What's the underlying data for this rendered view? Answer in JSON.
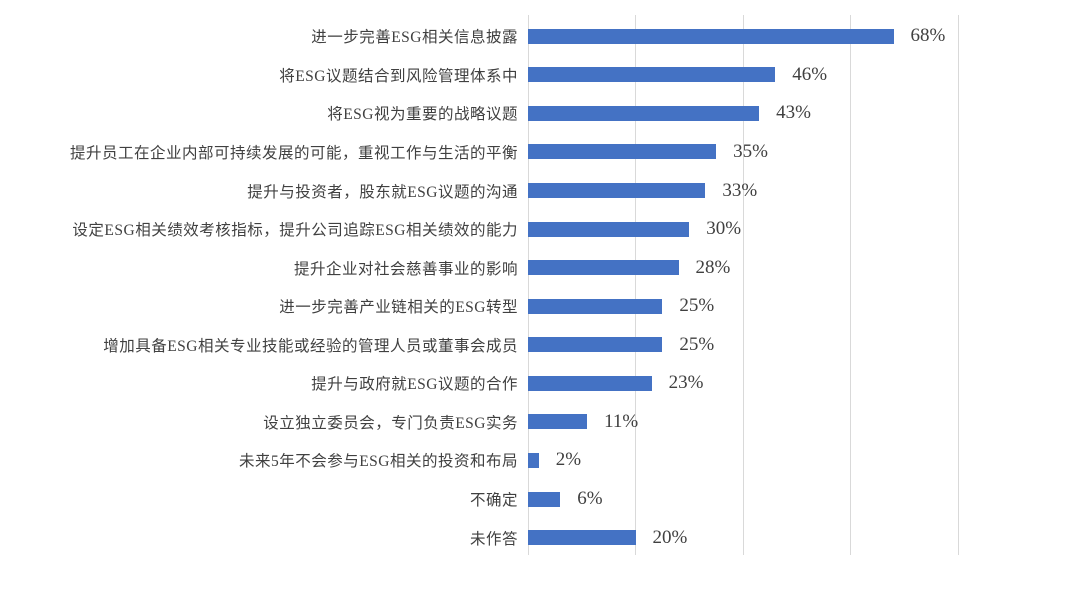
{
  "chart_data": {
    "type": "bar",
    "orientation": "horizontal",
    "categories": [
      "进一步完善ESG相关信息披露",
      "将ESG议题结合到风险管理体系中",
      "将ESG视为重要的战略议题",
      "提升员工在企业内部可持续发展的可能，重视工作与生活的平衡",
      "提升与投资者，股东就ESG议题的沟通",
      "设定ESG相关绩效考核指标，提升公司追踪ESG相关绩效的能力",
      "提升企业对社会慈善事业的影响",
      "进一步完善产业链相关的ESG转型",
      "增加具备ESG相关专业技能或经验的管理人员或董事会成员",
      "提升与政府就ESG议题的合作",
      "设立独立委员会，专门负责ESG实务",
      "未来5年不会参与ESG相关的投资和布局",
      "不确定",
      "未作答"
    ],
    "values": [
      68,
      46,
      43,
      35,
      33,
      30,
      28,
      25,
      25,
      23,
      11,
      2,
      6,
      20
    ],
    "value_labels": [
      "68%",
      "46%",
      "43%",
      "35%",
      "33%",
      "30%",
      "28%",
      "25%",
      "25%",
      "23%",
      "11%",
      "2%",
      "6%",
      "20%"
    ],
    "xlim": [
      0,
      100
    ],
    "gridline_interval_percent": 20,
    "grid": "vertical-only",
    "legend": "none",
    "xlabel": "",
    "ylabel": "",
    "bar_color": "#4472C4",
    "gridline_color": "#D9D9D9",
    "text_color": "#404040"
  }
}
